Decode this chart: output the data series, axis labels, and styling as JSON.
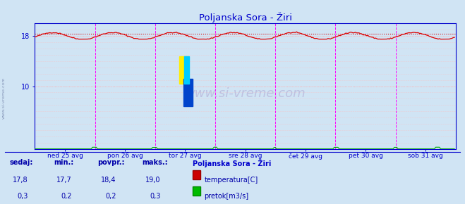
{
  "title": "Poljanska Sora - Žiri",
  "bg_color": "#d0e4f4",
  "plot_bg_color": "#d0e4f4",
  "axis_color": "#0000cc",
  "title_color": "#0000cc",
  "watermark": "www.si-vreme.com",
  "x_labels": [
    "ned 25 avg",
    "pon 26 avg",
    "tor 27 avg",
    "sre 28 avg",
    "čet 29 avg",
    "pet 30 avg",
    "sob 31 avg"
  ],
  "ylim": [
    0,
    20
  ],
  "xlim": [
    0,
    336
  ],
  "temp_color": "#dd0000",
  "temp_avg_color": "#dd0000",
  "flow_color": "#00aa00",
  "vline_color": "#ff00ff",
  "sidebar_color": "#8899bb",
  "legend_title": "Poljanska Sora - Žiri",
  "legend_title_color": "#0000cc",
  "legend_text_color": "#0000aa",
  "stats_label_color": "#0000aa",
  "stats_value_color": "#0000aa",
  "footer_labels": [
    "sedaj:",
    "min.:",
    "povpr.:",
    "maks.:"
  ],
  "footer_values_temp": [
    "17,8",
    "17,7",
    "18,4",
    "19,0"
  ],
  "footer_values_flow": [
    "0,3",
    "0,2",
    "0,2",
    "0,3"
  ],
  "n_points": 336,
  "days": 7,
  "temp_base": 18.0,
  "temp_amplitude": 0.55,
  "temp_period": 48,
  "temp_avg": 18.4,
  "flow_max_display": 0.3,
  "flow_spike_positions": [
    46,
    94,
    143,
    191,
    239,
    287,
    320
  ],
  "logo_yellow_color": "#ffee00",
  "logo_blue_color": "#0044cc",
  "logo_cyan_color": "#00ccff"
}
